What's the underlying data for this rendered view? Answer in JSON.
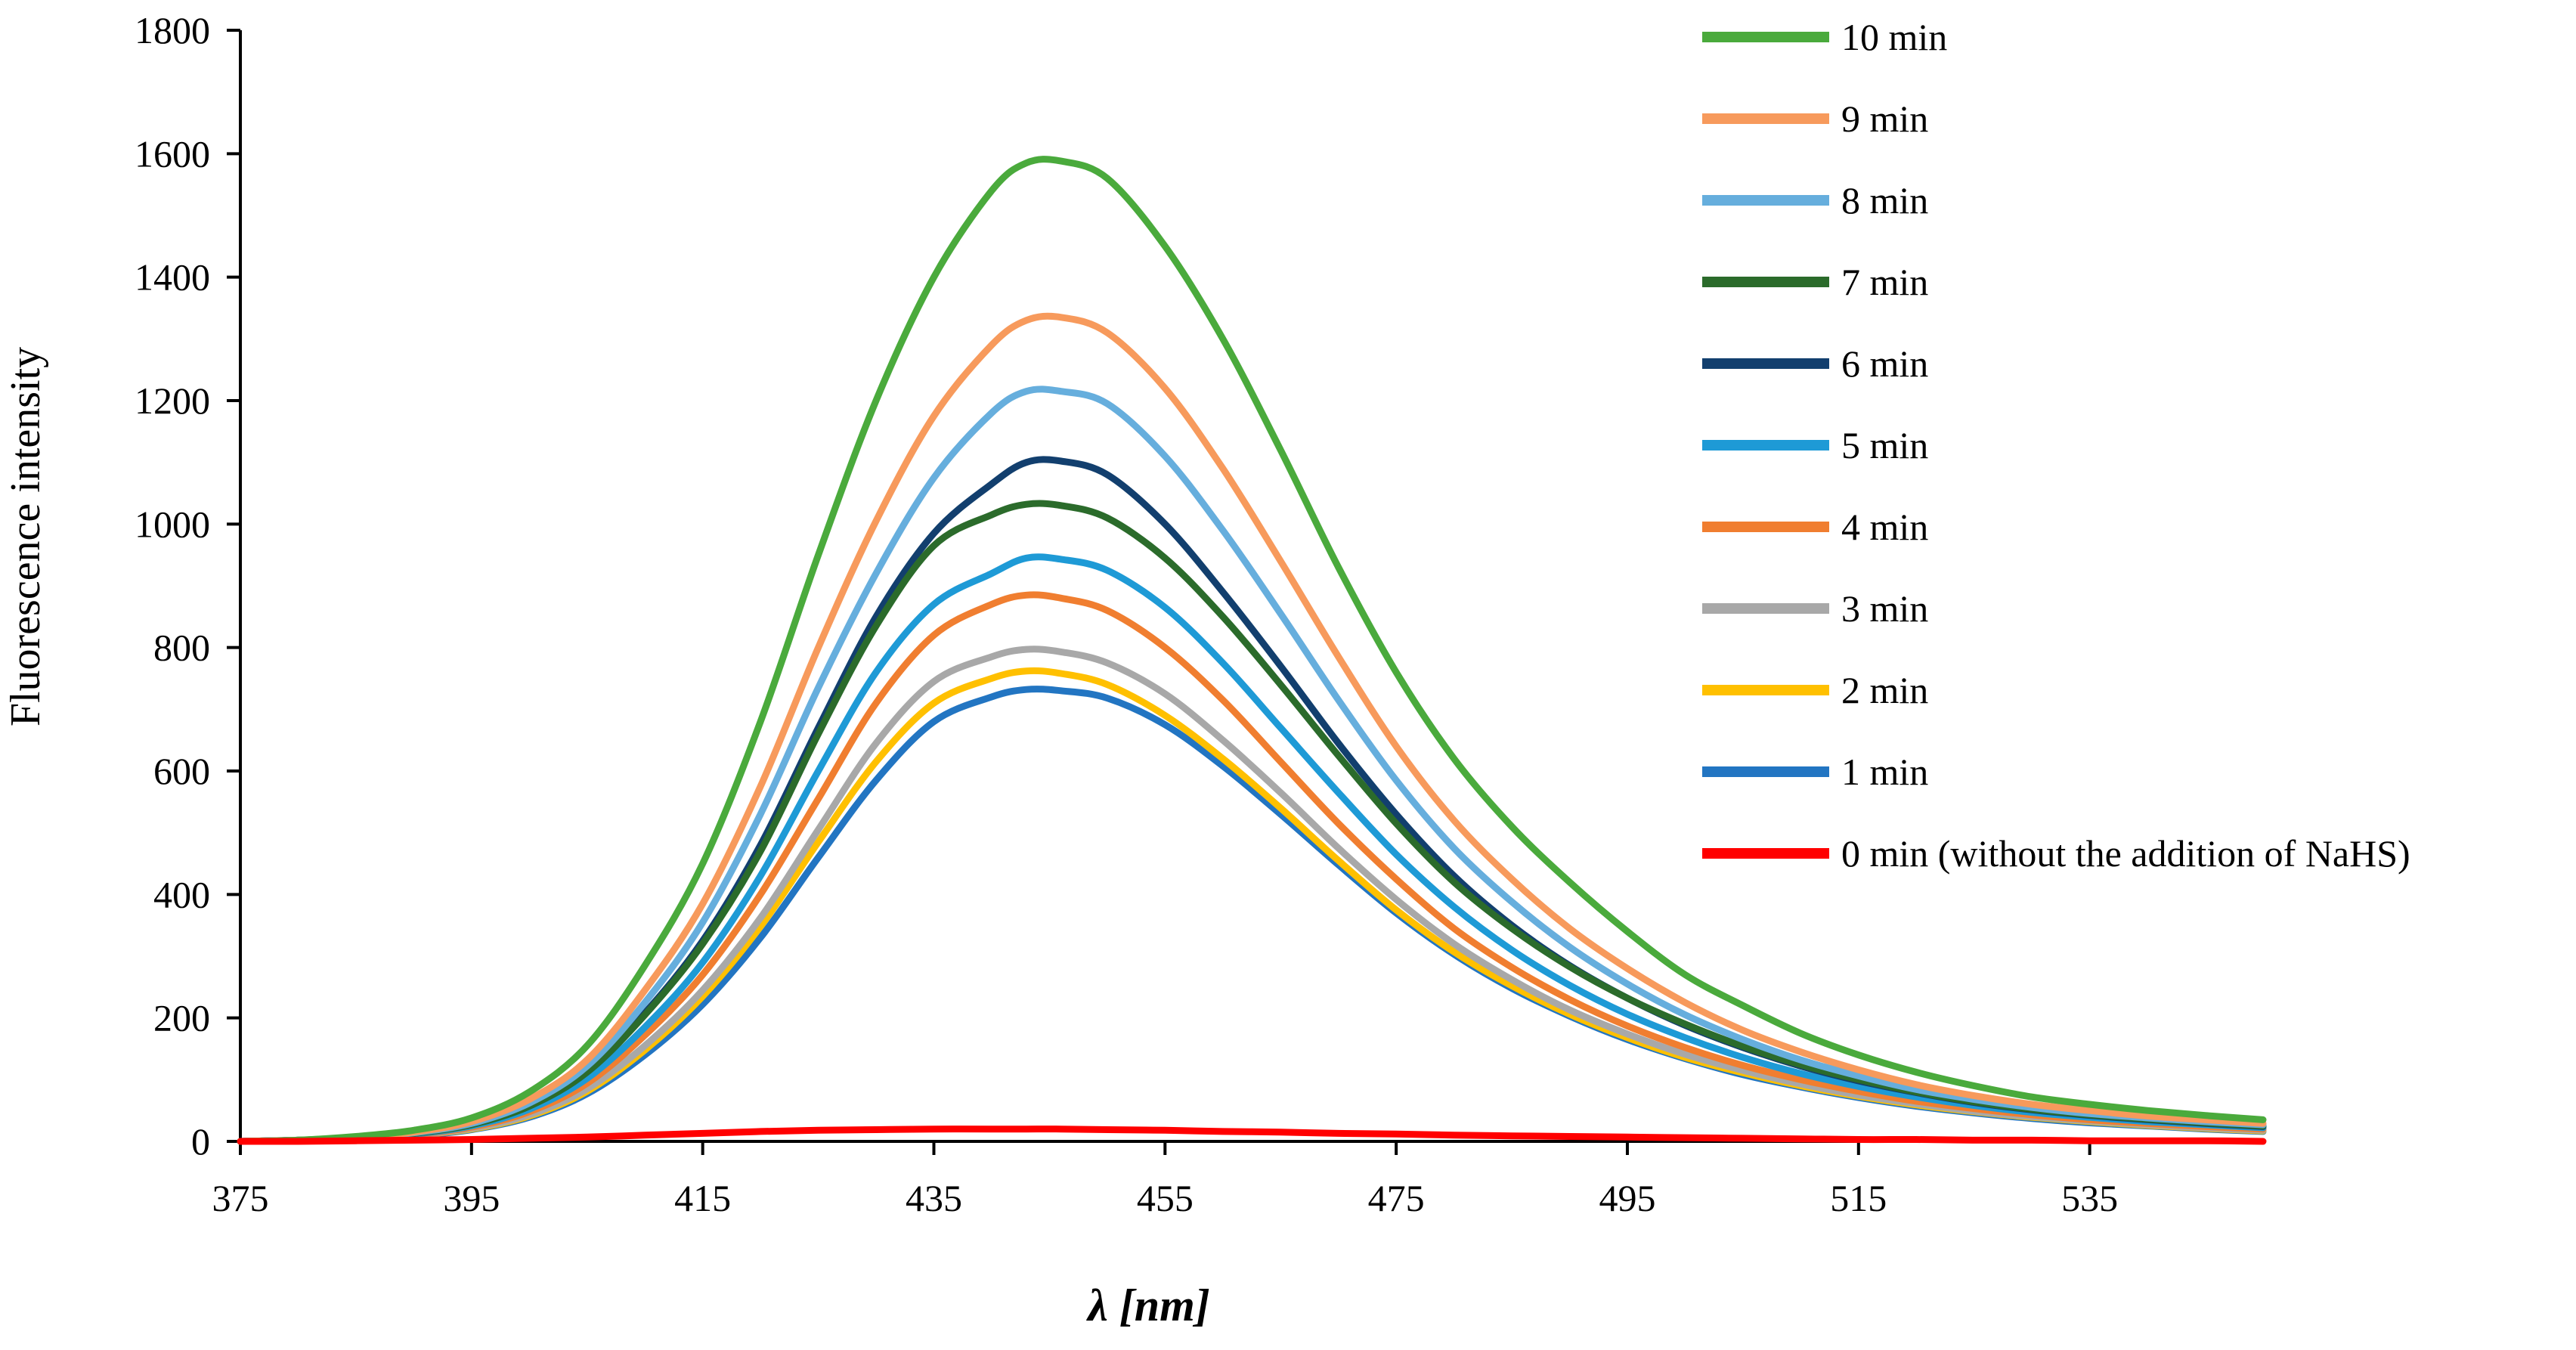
{
  "chart_data": {
    "type": "line",
    "title": "",
    "xlabel": "λ [nm]",
    "ylabel": "Fluorescence intensity",
    "xlim": [
      375,
      550
    ],
    "ylim": [
      0,
      1800
    ],
    "x_ticks": [
      375,
      395,
      415,
      435,
      455,
      475,
      495,
      515,
      535
    ],
    "y_ticks": [
      0,
      200,
      400,
      600,
      800,
      1000,
      1200,
      1400,
      1600,
      1800
    ],
    "grid": false,
    "legend_position": "top-right",
    "x": [
      375,
      380,
      385,
      390,
      395,
      400,
      405,
      410,
      415,
      420,
      425,
      430,
      435,
      440,
      443,
      446,
      450,
      455,
      460,
      465,
      470,
      475,
      480,
      485,
      490,
      495,
      500,
      505,
      510,
      515,
      520,
      525,
      530,
      535,
      540,
      545,
      550
    ],
    "series": [
      {
        "name": "10 min",
        "color": "#4AAA3C",
        "values": [
          0,
          2,
          8,
          18,
          38,
          80,
          155,
          285,
          450,
          680,
          950,
          1200,
          1400,
          1540,
          1585,
          1588,
          1560,
          1450,
          1300,
          1120,
          930,
          760,
          620,
          510,
          420,
          340,
          270,
          220,
          175,
          140,
          112,
          90,
          72,
          60,
          50,
          42,
          35
        ]
      },
      {
        "name": "9 min",
        "color": "#F79A5C",
        "values": [
          0,
          2,
          7,
          15,
          32,
          68,
          132,
          245,
          385,
          575,
          800,
          1005,
          1175,
          1290,
          1330,
          1335,
          1310,
          1220,
          1090,
          940,
          785,
          640,
          520,
          425,
          345,
          280,
          225,
          180,
          145,
          116,
          92,
          74,
          60,
          50,
          41,
          35,
          29
        ]
      },
      {
        "name": "8 min",
        "color": "#66AEDD",
        "values": [
          0,
          2,
          6,
          14,
          29,
          62,
          122,
          225,
          355,
          530,
          735,
          920,
          1075,
          1180,
          1215,
          1215,
          1195,
          1110,
          990,
          855,
          715,
          585,
          475,
          388,
          315,
          255,
          205,
          165,
          132,
          106,
          84,
          68,
          55,
          45,
          38,
          32,
          27
        ]
      },
      {
        "name": "7 min",
        "color": "#2B6B2B",
        "values": [
          0,
          2,
          6,
          13,
          27,
          57,
          112,
          205,
          320,
          470,
          660,
          835,
          965,
          1015,
          1032,
          1030,
          1010,
          945,
          850,
          740,
          625,
          515,
          420,
          345,
          283,
          232,
          190,
          154,
          124,
          100,
          80,
          64,
          52,
          43,
          36,
          30,
          25
        ]
      },
      {
        "name": "6 min",
        "color": "#123F6E",
        "values": [
          0,
          2,
          6,
          13,
          28,
          58,
          115,
          208,
          325,
          480,
          670,
          850,
          985,
          1065,
          1100,
          1102,
          1080,
          1000,
          890,
          770,
          645,
          530,
          430,
          350,
          285,
          232,
          188,
          152,
          122,
          98,
          79,
          63,
          51,
          42,
          35,
          29,
          24
        ]
      },
      {
        "name": "5 min",
        "color": "#1E9AD6",
        "values": [
          0,
          2,
          5,
          12,
          25,
          52,
          102,
          185,
          290,
          430,
          600,
          760,
          870,
          920,
          945,
          943,
          925,
          865,
          775,
          670,
          565,
          465,
          380,
          310,
          253,
          206,
          168,
          136,
          110,
          89,
          72,
          58,
          47,
          39,
          32,
          27,
          22
        ]
      },
      {
        "name": "4 min",
        "color": "#F07E30",
        "values": [
          0,
          2,
          5,
          11,
          23,
          48,
          94,
          172,
          270,
          400,
          555,
          710,
          820,
          870,
          885,
          880,
          860,
          800,
          715,
          615,
          515,
          425,
          345,
          282,
          230,
          187,
          152,
          123,
          100,
          81,
          65,
          53,
          43,
          35,
          29,
          24,
          20
        ]
      },
      {
        "name": "3 min",
        "color": "#A8A8A8",
        "values": [
          0,
          1,
          4,
          10,
          21,
          43,
          85,
          155,
          245,
          362,
          505,
          645,
          745,
          785,
          797,
          793,
          775,
          725,
          650,
          565,
          475,
          392,
          320,
          262,
          213,
          174,
          141,
          115,
          93,
          75,
          61,
          49,
          40,
          33,
          27,
          22,
          18
        ]
      },
      {
        "name": "2 min",
        "color": "#FFC000",
        "values": [
          0,
          1,
          4,
          10,
          20,
          41,
          81,
          148,
          235,
          348,
          485,
          615,
          710,
          750,
          762,
          758,
          740,
          690,
          620,
          540,
          455,
          375,
          307,
          252,
          206,
          168,
          136,
          111,
          90,
          73,
          59,
          48,
          39,
          32,
          26,
          21,
          17
        ]
      },
      {
        "name": "1 min",
        "color": "#2275C2",
        "values": [
          0,
          1,
          4,
          9,
          19,
          39,
          77,
          140,
          222,
          330,
          460,
          585,
          680,
          720,
          732,
          730,
          718,
          675,
          608,
          530,
          448,
          370,
          303,
          248,
          203,
          165,
          134,
          108,
          88,
          71,
          57,
          46,
          37,
          30,
          25,
          20,
          16
        ]
      },
      {
        "name": "0 min (without the addition of NaHS)",
        "color": "#FF0000",
        "values": [
          0,
          0,
          1,
          2,
          3,
          5,
          7,
          10,
          13,
          16,
          18,
          19,
          20,
          20,
          20,
          20,
          19,
          18,
          16,
          15,
          13,
          12,
          10,
          9,
          8,
          7,
          6,
          5,
          4,
          3,
          3,
          2,
          2,
          1,
          1,
          1,
          0
        ]
      }
    ]
  }
}
